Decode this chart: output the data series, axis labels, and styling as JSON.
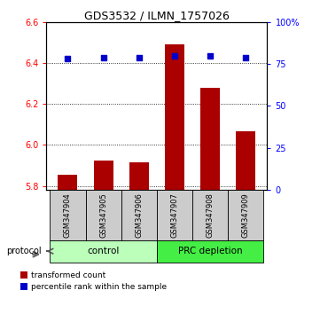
{
  "title": "GDS3532 / ILMN_1757026",
  "categories": [
    "GSM347904",
    "GSM347905",
    "GSM347906",
    "GSM347907",
    "GSM347908",
    "GSM347909"
  ],
  "bar_values": [
    5.855,
    5.925,
    5.915,
    6.49,
    6.28,
    6.065
  ],
  "scatter_values": [
    78,
    79,
    79,
    80,
    80,
    79
  ],
  "bar_color": "#aa0000",
  "scatter_color": "#0000cc",
  "ylim_left": [
    5.78,
    6.6
  ],
  "ylim_right": [
    0,
    100
  ],
  "yticks_left": [
    5.8,
    6.0,
    6.2,
    6.4,
    6.6
  ],
  "yticks_right": [
    0,
    25,
    50,
    75,
    100
  ],
  "ytick_labels_right": [
    "0",
    "25",
    "50",
    "75",
    "100%"
  ],
  "groups": [
    {
      "label": "control",
      "span": [
        0,
        2
      ],
      "color": "#bbffbb"
    },
    {
      "label": "PRC depletion",
      "span": [
        3,
        5
      ],
      "color": "#44ee44"
    }
  ],
  "protocol_label": "protocol",
  "legend_bar_label": "transformed count",
  "legend_scatter_label": "percentile rank within the sample",
  "cat_bg_color": "#cccccc"
}
